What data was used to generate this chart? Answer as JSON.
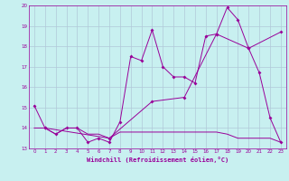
{
  "title": "",
  "xlabel": "Windchill (Refroidissement éolien,°C)",
  "ylabel": "",
  "background_color": "#c8f0f0",
  "grid_color": "#b0c8d8",
  "line_color": "#990099",
  "xlim": [
    -0.5,
    23.5
  ],
  "ylim": [
    13,
    20
  ],
  "xticks": [
    0,
    1,
    2,
    3,
    4,
    5,
    6,
    7,
    8,
    9,
    10,
    11,
    12,
    13,
    14,
    15,
    16,
    17,
    18,
    19,
    20,
    21,
    22,
    23
  ],
  "yticks": [
    13,
    14,
    15,
    16,
    17,
    18,
    19,
    20
  ],
  "series1_x": [
    0,
    1,
    2,
    3,
    4,
    5,
    6,
    7,
    8,
    9,
    10,
    11,
    12,
    13,
    14,
    15,
    16,
    17,
    18,
    19,
    20,
    21,
    22,
    23
  ],
  "series1_y": [
    15.1,
    14.0,
    13.7,
    14.0,
    14.0,
    13.3,
    13.5,
    13.3,
    14.3,
    17.5,
    17.3,
    18.8,
    17.0,
    16.5,
    16.5,
    16.2,
    18.5,
    18.6,
    19.9,
    19.3,
    17.9,
    16.7,
    14.5,
    13.3
  ],
  "series2_x": [
    0,
    1,
    2,
    3,
    4,
    5,
    6,
    7,
    8,
    9,
    10,
    11,
    12,
    13,
    14,
    15,
    16,
    17,
    18,
    19,
    20,
    21,
    22,
    23
  ],
  "series2_y": [
    14.0,
    14.0,
    13.7,
    14.0,
    14.0,
    13.7,
    13.7,
    13.5,
    13.8,
    13.8,
    13.8,
    13.8,
    13.8,
    13.8,
    13.8,
    13.8,
    13.8,
    13.8,
    13.7,
    13.5,
    13.5,
    13.5,
    13.5,
    13.3
  ],
  "series3_x": [
    1,
    7,
    11,
    14,
    17,
    20,
    23
  ],
  "series3_y": [
    14.0,
    13.5,
    15.3,
    15.5,
    18.6,
    17.9,
    18.7
  ]
}
